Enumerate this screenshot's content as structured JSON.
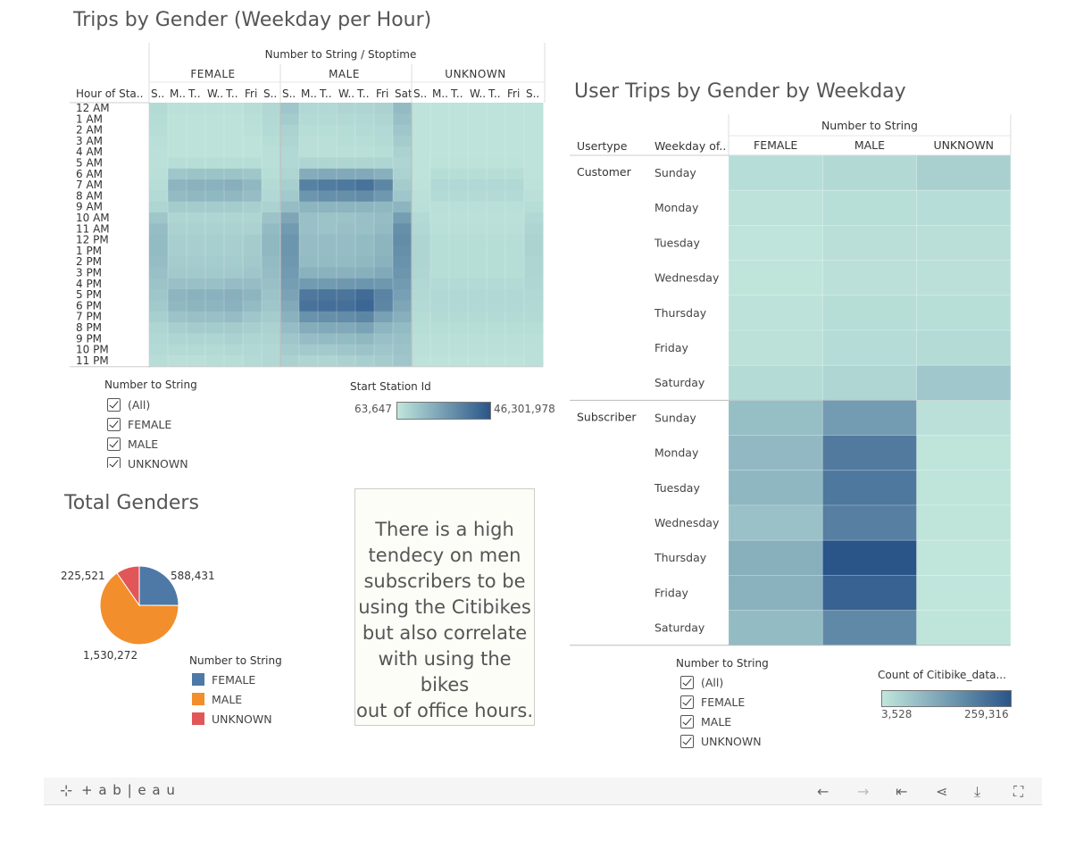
{
  "heatmap1": {
    "title": "Trips by Gender (Weekday per Hour)",
    "col_header": "Number to String / Stoptime",
    "row_header": "Hour of Sta..",
    "genders": [
      "FEMALE",
      "MALE",
      "UNKNOWN"
    ],
    "day_labels": [
      "S..",
      "M..",
      "T..",
      "W..",
      "T..",
      "Fri",
      "S..",
      "S..",
      "M..",
      "T..",
      "W..",
      "T..",
      "Fri",
      "Sat",
      "S..",
      "M..",
      "T..",
      "W..",
      "T..",
      "Fri",
      "S.."
    ],
    "hours": [
      "12 AM",
      "1 AM",
      "2 AM",
      "3 AM",
      "4 AM",
      "5 AM",
      "6 AM",
      "7 AM",
      "8 AM",
      "9 AM",
      "10 AM",
      "11 AM",
      "12 PM",
      "1 PM",
      "2 PM",
      "3 PM",
      "4 PM",
      "5 PM",
      "6 PM",
      "7 PM",
      "8 PM",
      "9 PM",
      "10 PM",
      "11 PM"
    ],
    "filter": {
      "title": "Number to String",
      "items": [
        "(All)",
        "FEMALE",
        "MALE",
        "UNKNOWN"
      ]
    },
    "color_legend": {
      "title": "Start Station Id",
      "min": "63,647",
      "max": "46,301,978"
    }
  },
  "pie": {
    "title": "Total Genders",
    "legend_title": "Number to String",
    "labels": {
      "female": "588,431",
      "male": "1,530,272",
      "unknown": "225,521"
    },
    "legend": [
      "FEMALE",
      "MALE",
      "UNKNOWN"
    ]
  },
  "note": {
    "lines": [
      "There is a high",
      "tendecy on men",
      "subscribers to be",
      "using the Citibikes",
      "but also correlate",
      "with using the bikes",
      "out of office hours."
    ]
  },
  "heatmap2": {
    "title": "User Trips by Gender by Weekday",
    "col_header": "Number to String",
    "usertype_header": "Usertype",
    "weekday_header": "Weekday of..",
    "columns": [
      "FEMALE",
      "MALE",
      "UNKNOWN"
    ],
    "usertypes": [
      "Customer",
      "Subscriber"
    ],
    "weekdays": [
      "Sunday",
      "Monday",
      "Tuesday",
      "Wednesday",
      "Thursday",
      "Friday",
      "Saturday"
    ],
    "filter": {
      "title": "Number to String",
      "items": [
        "(All)",
        "FEMALE",
        "MALE",
        "UNKNOWN"
      ]
    },
    "color_legend": {
      "title": "Count of Citibike_data...",
      "min": "3,528",
      "max": "259,316"
    }
  },
  "footer": {
    "brand": "+ a b | e a u"
  },
  "colors": {
    "ramp_low": "#c0e6dc",
    "ramp_high": "#2a5589",
    "female": "#4e79a7",
    "male": "#f28e2b",
    "unknown": "#e15759"
  },
  "chart_data": [
    {
      "type": "heatmap",
      "title": "Trips by Gender (Weekday per Hour)",
      "x_groups": [
        "FEMALE",
        "MALE",
        "UNKNOWN"
      ],
      "x": [
        "S..",
        "M..",
        "T..",
        "W..",
        "T..",
        "Fri",
        "S..",
        "S..",
        "M..",
        "T..",
        "W..",
        "T..",
        "Fri",
        "Sat",
        "S..",
        "M..",
        "T..",
        "W..",
        "T..",
        "Fri",
        "S.."
      ],
      "y": [
        "12 AM",
        "1 AM",
        "2 AM",
        "3 AM",
        "4 AM",
        "5 AM",
        "6 AM",
        "7 AM",
        "8 AM",
        "9 AM",
        "10 AM",
        "11 AM",
        "12 PM",
        "1 PM",
        "2 PM",
        "3 PM",
        "4 PM",
        "5 PM",
        "6 PM",
        "7 PM",
        "8 PM",
        "9 PM",
        "10 PM",
        "11 PM"
      ],
      "value_range": [
        63647,
        46301978
      ],
      "intensity": [
        [
          0.08,
          0.04,
          0.04,
          0.04,
          0.04,
          0.06,
          0.1,
          0.22,
          0.1,
          0.1,
          0.12,
          0.12,
          0.14,
          0.3,
          0.02,
          0.02,
          0.02,
          0.02,
          0.02,
          0.02,
          0.02
        ],
        [
          0.07,
          0.03,
          0.03,
          0.03,
          0.03,
          0.05,
          0.09,
          0.18,
          0.08,
          0.08,
          0.09,
          0.1,
          0.12,
          0.26,
          0.02,
          0.02,
          0.02,
          0.02,
          0.02,
          0.02,
          0.02
        ],
        [
          0.06,
          0.03,
          0.03,
          0.03,
          0.03,
          0.04,
          0.08,
          0.14,
          0.06,
          0.06,
          0.07,
          0.08,
          0.1,
          0.22,
          0.02,
          0.02,
          0.02,
          0.02,
          0.02,
          0.02,
          0.02
        ],
        [
          0.05,
          0.03,
          0.03,
          0.03,
          0.03,
          0.03,
          0.06,
          0.12,
          0.05,
          0.05,
          0.06,
          0.06,
          0.08,
          0.18,
          0.02,
          0.02,
          0.02,
          0.02,
          0.02,
          0.02,
          0.02
        ],
        [
          0.04,
          0.03,
          0.03,
          0.03,
          0.03,
          0.03,
          0.05,
          0.1,
          0.05,
          0.05,
          0.05,
          0.05,
          0.06,
          0.14,
          0.02,
          0.02,
          0.02,
          0.02,
          0.02,
          0.02,
          0.02
        ],
        [
          0.04,
          0.06,
          0.06,
          0.06,
          0.06,
          0.06,
          0.05,
          0.1,
          0.12,
          0.12,
          0.12,
          0.12,
          0.12,
          0.12,
          0.02,
          0.03,
          0.03,
          0.03,
          0.03,
          0.03,
          0.02
        ],
        [
          0.05,
          0.22,
          0.24,
          0.24,
          0.24,
          0.22,
          0.06,
          0.12,
          0.4,
          0.42,
          0.42,
          0.42,
          0.38,
          0.14,
          0.02,
          0.06,
          0.06,
          0.06,
          0.06,
          0.06,
          0.02
        ],
        [
          0.06,
          0.34,
          0.36,
          0.36,
          0.38,
          0.32,
          0.08,
          0.16,
          0.7,
          0.74,
          0.76,
          0.8,
          0.66,
          0.18,
          0.03,
          0.1,
          0.1,
          0.1,
          0.1,
          0.1,
          0.03
        ],
        [
          0.08,
          0.3,
          0.32,
          0.32,
          0.32,
          0.28,
          0.1,
          0.2,
          0.56,
          0.6,
          0.6,
          0.62,
          0.54,
          0.22,
          0.04,
          0.08,
          0.08,
          0.08,
          0.08,
          0.08,
          0.04
        ],
        [
          0.12,
          0.18,
          0.18,
          0.18,
          0.18,
          0.16,
          0.14,
          0.28,
          0.34,
          0.34,
          0.34,
          0.34,
          0.32,
          0.34,
          0.05,
          0.05,
          0.05,
          0.05,
          0.05,
          0.05,
          0.06
        ],
        [
          0.22,
          0.12,
          0.12,
          0.12,
          0.12,
          0.12,
          0.24,
          0.44,
          0.26,
          0.24,
          0.24,
          0.26,
          0.28,
          0.5,
          0.08,
          0.04,
          0.04,
          0.04,
          0.04,
          0.04,
          0.1
        ],
        [
          0.28,
          0.14,
          0.14,
          0.14,
          0.14,
          0.14,
          0.3,
          0.52,
          0.26,
          0.24,
          0.26,
          0.26,
          0.3,
          0.6,
          0.1,
          0.05,
          0.05,
          0.05,
          0.05,
          0.05,
          0.12
        ],
        [
          0.3,
          0.16,
          0.16,
          0.16,
          0.16,
          0.18,
          0.32,
          0.56,
          0.28,
          0.28,
          0.28,
          0.3,
          0.34,
          0.62,
          0.12,
          0.06,
          0.06,
          0.06,
          0.06,
          0.06,
          0.13
        ],
        [
          0.3,
          0.16,
          0.16,
          0.16,
          0.16,
          0.18,
          0.32,
          0.56,
          0.28,
          0.28,
          0.28,
          0.3,
          0.34,
          0.6,
          0.12,
          0.06,
          0.06,
          0.06,
          0.06,
          0.06,
          0.13
        ],
        [
          0.28,
          0.18,
          0.18,
          0.18,
          0.18,
          0.2,
          0.3,
          0.54,
          0.3,
          0.3,
          0.3,
          0.32,
          0.36,
          0.58,
          0.12,
          0.06,
          0.06,
          0.06,
          0.06,
          0.06,
          0.12
        ],
        [
          0.26,
          0.2,
          0.2,
          0.2,
          0.2,
          0.22,
          0.28,
          0.52,
          0.36,
          0.36,
          0.36,
          0.38,
          0.42,
          0.56,
          0.11,
          0.06,
          0.06,
          0.06,
          0.06,
          0.06,
          0.12
        ],
        [
          0.24,
          0.26,
          0.26,
          0.26,
          0.28,
          0.28,
          0.26,
          0.5,
          0.52,
          0.52,
          0.54,
          0.56,
          0.54,
          0.52,
          0.1,
          0.08,
          0.08,
          0.08,
          0.08,
          0.08,
          0.11
        ],
        [
          0.22,
          0.34,
          0.36,
          0.36,
          0.38,
          0.34,
          0.24,
          0.46,
          0.76,
          0.78,
          0.78,
          0.84,
          0.68,
          0.48,
          0.09,
          0.1,
          0.1,
          0.1,
          0.1,
          0.1,
          0.1
        ],
        [
          0.2,
          0.32,
          0.34,
          0.34,
          0.36,
          0.3,
          0.22,
          0.42,
          0.8,
          0.82,
          0.82,
          0.88,
          0.66,
          0.44,
          0.08,
          0.1,
          0.1,
          0.1,
          0.1,
          0.1,
          0.09
        ],
        [
          0.16,
          0.24,
          0.26,
          0.26,
          0.28,
          0.22,
          0.18,
          0.36,
          0.58,
          0.6,
          0.62,
          0.66,
          0.48,
          0.38,
          0.07,
          0.08,
          0.08,
          0.08,
          0.08,
          0.08,
          0.08
        ],
        [
          0.12,
          0.16,
          0.18,
          0.18,
          0.18,
          0.16,
          0.14,
          0.28,
          0.4,
          0.42,
          0.42,
          0.46,
          0.34,
          0.3,
          0.06,
          0.06,
          0.06,
          0.06,
          0.06,
          0.06,
          0.06
        ],
        [
          0.1,
          0.12,
          0.12,
          0.12,
          0.14,
          0.12,
          0.12,
          0.22,
          0.28,
          0.3,
          0.3,
          0.32,
          0.26,
          0.26,
          0.05,
          0.05,
          0.05,
          0.05,
          0.05,
          0.05,
          0.05
        ],
        [
          0.08,
          0.08,
          0.08,
          0.08,
          0.1,
          0.1,
          0.1,
          0.18,
          0.2,
          0.2,
          0.22,
          0.24,
          0.22,
          0.24,
          0.04,
          0.04,
          0.04,
          0.04,
          0.04,
          0.04,
          0.04
        ],
        [
          0.06,
          0.05,
          0.05,
          0.06,
          0.06,
          0.08,
          0.1,
          0.14,
          0.12,
          0.12,
          0.14,
          0.16,
          0.18,
          0.22,
          0.03,
          0.03,
          0.03,
          0.03,
          0.03,
          0.03,
          0.04
        ]
      ]
    },
    {
      "type": "pie",
      "title": "Total Genders",
      "categories": [
        "FEMALE",
        "MALE",
        "UNKNOWN"
      ],
      "values": [
        588431,
        1530272,
        225521
      ]
    },
    {
      "type": "heatmap",
      "title": "User Trips by Gender by Weekday",
      "x": [
        "FEMALE",
        "MALE",
        "UNKNOWN"
      ],
      "y_groups": [
        "Customer",
        "Subscriber"
      ],
      "y": [
        "Sunday",
        "Monday",
        "Tuesday",
        "Wednesday",
        "Thursday",
        "Friday",
        "Saturday"
      ],
      "value_range": [
        3528,
        259316
      ],
      "values": {
        "Customer": [
          [
            12000,
            16000,
            28000
          ],
          [
            6000,
            10000,
            12000
          ],
          [
            5000,
            9000,
            9000
          ],
          [
            4000,
            8000,
            8000
          ],
          [
            6000,
            11000,
            10000
          ],
          [
            7000,
            13000,
            14000
          ],
          [
            14000,
            20000,
            40000
          ]
        ],
        "Subscriber": [
          [
            55000,
            115000,
            8000
          ],
          [
            62000,
            180000,
            4000
          ],
          [
            66000,
            185000,
            4000
          ],
          [
            50000,
            170000,
            4000
          ],
          [
            80000,
            259316,
            3528
          ],
          [
            75000,
            230000,
            3528
          ],
          [
            60000,
            150000,
            4000
          ]
        ]
      }
    }
  ]
}
